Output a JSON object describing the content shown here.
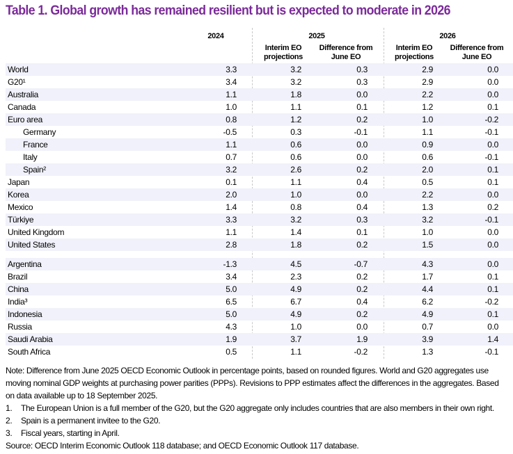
{
  "title": "Table 1. Global growth has remained resilient but is expected to moderate in 2026",
  "headers": {
    "y2024": "2024",
    "y2025": "2025",
    "y2026": "2026",
    "interim": "Interim EO projections",
    "diff": "Difference from June EO"
  },
  "colors": {
    "title": "#7b2a9a",
    "stripe": "#f0f1fa"
  },
  "groups": [
    [
      {
        "name": "World",
        "v": [
          "3.3",
          "3.2",
          "0.3",
          "2.9",
          "0.0"
        ]
      },
      {
        "name": "G20¹",
        "v": [
          "3.4",
          "3.2",
          "0.3",
          "2.9",
          "0.0"
        ]
      },
      {
        "name": "Australia",
        "v": [
          "1.1",
          "1.8",
          "0.0",
          "2.2",
          "0.0"
        ]
      },
      {
        "name": "Canada",
        "v": [
          "1.0",
          "1.1",
          "0.1",
          "1.2",
          "0.1"
        ]
      },
      {
        "name": "Euro area",
        "v": [
          "0.8",
          "1.2",
          "0.2",
          "1.0",
          "-0.2"
        ]
      },
      {
        "name": "Germany",
        "sub": true,
        "v": [
          "-0.5",
          "0.3",
          "-0.1",
          "1.1",
          "-0.1"
        ]
      },
      {
        "name": "France",
        "sub": true,
        "v": [
          "1.1",
          "0.6",
          "0.0",
          "0.9",
          "0.0"
        ]
      },
      {
        "name": "Italy",
        "sub": true,
        "v": [
          "0.7",
          "0.6",
          "0.0",
          "0.6",
          "-0.1"
        ]
      },
      {
        "name": "Spain²",
        "sub": true,
        "v": [
          "3.2",
          "2.6",
          "0.2",
          "2.0",
          "0.1"
        ]
      },
      {
        "name": "Japan",
        "v": [
          "0.1",
          "1.1",
          "0.4",
          "0.5",
          "0.1"
        ]
      },
      {
        "name": "Korea",
        "v": [
          "2.0",
          "1.0",
          "0.0",
          "2.2",
          "0.0"
        ]
      },
      {
        "name": "Mexico",
        "v": [
          "1.4",
          "0.8",
          "0.4",
          "1.3",
          "0.2"
        ]
      },
      {
        "name": "Türkiye",
        "v": [
          "3.3",
          "3.2",
          "0.3",
          "3.2",
          "-0.1"
        ]
      },
      {
        "name": "United Kingdom",
        "v": [
          "1.1",
          "1.4",
          "0.1",
          "1.0",
          "0.0"
        ]
      },
      {
        "name": "United States",
        "v": [
          "2.8",
          "1.8",
          "0.2",
          "1.5",
          "0.0"
        ]
      }
    ],
    [
      {
        "name": "Argentina",
        "v": [
          "-1.3",
          "4.5",
          "-0.7",
          "4.3",
          "0.0"
        ]
      },
      {
        "name": "Brazil",
        "v": [
          "3.4",
          "2.3",
          "0.2",
          "1.7",
          "0.1"
        ]
      },
      {
        "name": "China",
        "v": [
          "5.0",
          "4.9",
          "0.2",
          "4.4",
          "0.1"
        ]
      },
      {
        "name": "India³",
        "v": [
          "6.5",
          "6.7",
          "0.4",
          "6.2",
          "-0.2"
        ]
      },
      {
        "name": "Indonesia",
        "v": [
          "5.0",
          "4.9",
          "0.2",
          "4.9",
          "0.1"
        ]
      },
      {
        "name": "Russia",
        "v": [
          "4.3",
          "1.0",
          "0.0",
          "0.7",
          "0.0"
        ]
      },
      {
        "name": "Saudi Arabia",
        "v": [
          "1.9",
          "3.7",
          "1.9",
          "3.9",
          "1.4"
        ]
      },
      {
        "name": "South Africa",
        "v": [
          "0.5",
          "1.1",
          "-0.2",
          "1.3",
          "-0.1"
        ]
      }
    ]
  ],
  "notes": {
    "note": "Note: Difference from June 2025 OECD Economic Outlook in percentage points, based on rounded figures. World and G20 aggregates use",
    "note2": "moving nominal GDP weights at purchasing power parities (PPPs). Revisions to PPP estimates affect the differences in the aggregates. Based",
    "note3": "on data available up to 18 September 2025.",
    "footnotes": [
      {
        "n": "1.",
        "text": "The European Union is a full member of the G20, but the G20 aggregate only includes countries that are also members in their own right."
      },
      {
        "n": "2.",
        "text": "Spain is a permanent invitee to the G20."
      },
      {
        "n": "3.",
        "text": "Fiscal years, starting in April."
      }
    ],
    "source": "Source: OECD Interim Economic Outlook 118 database; and OECD Economic Outlook 117 database."
  }
}
